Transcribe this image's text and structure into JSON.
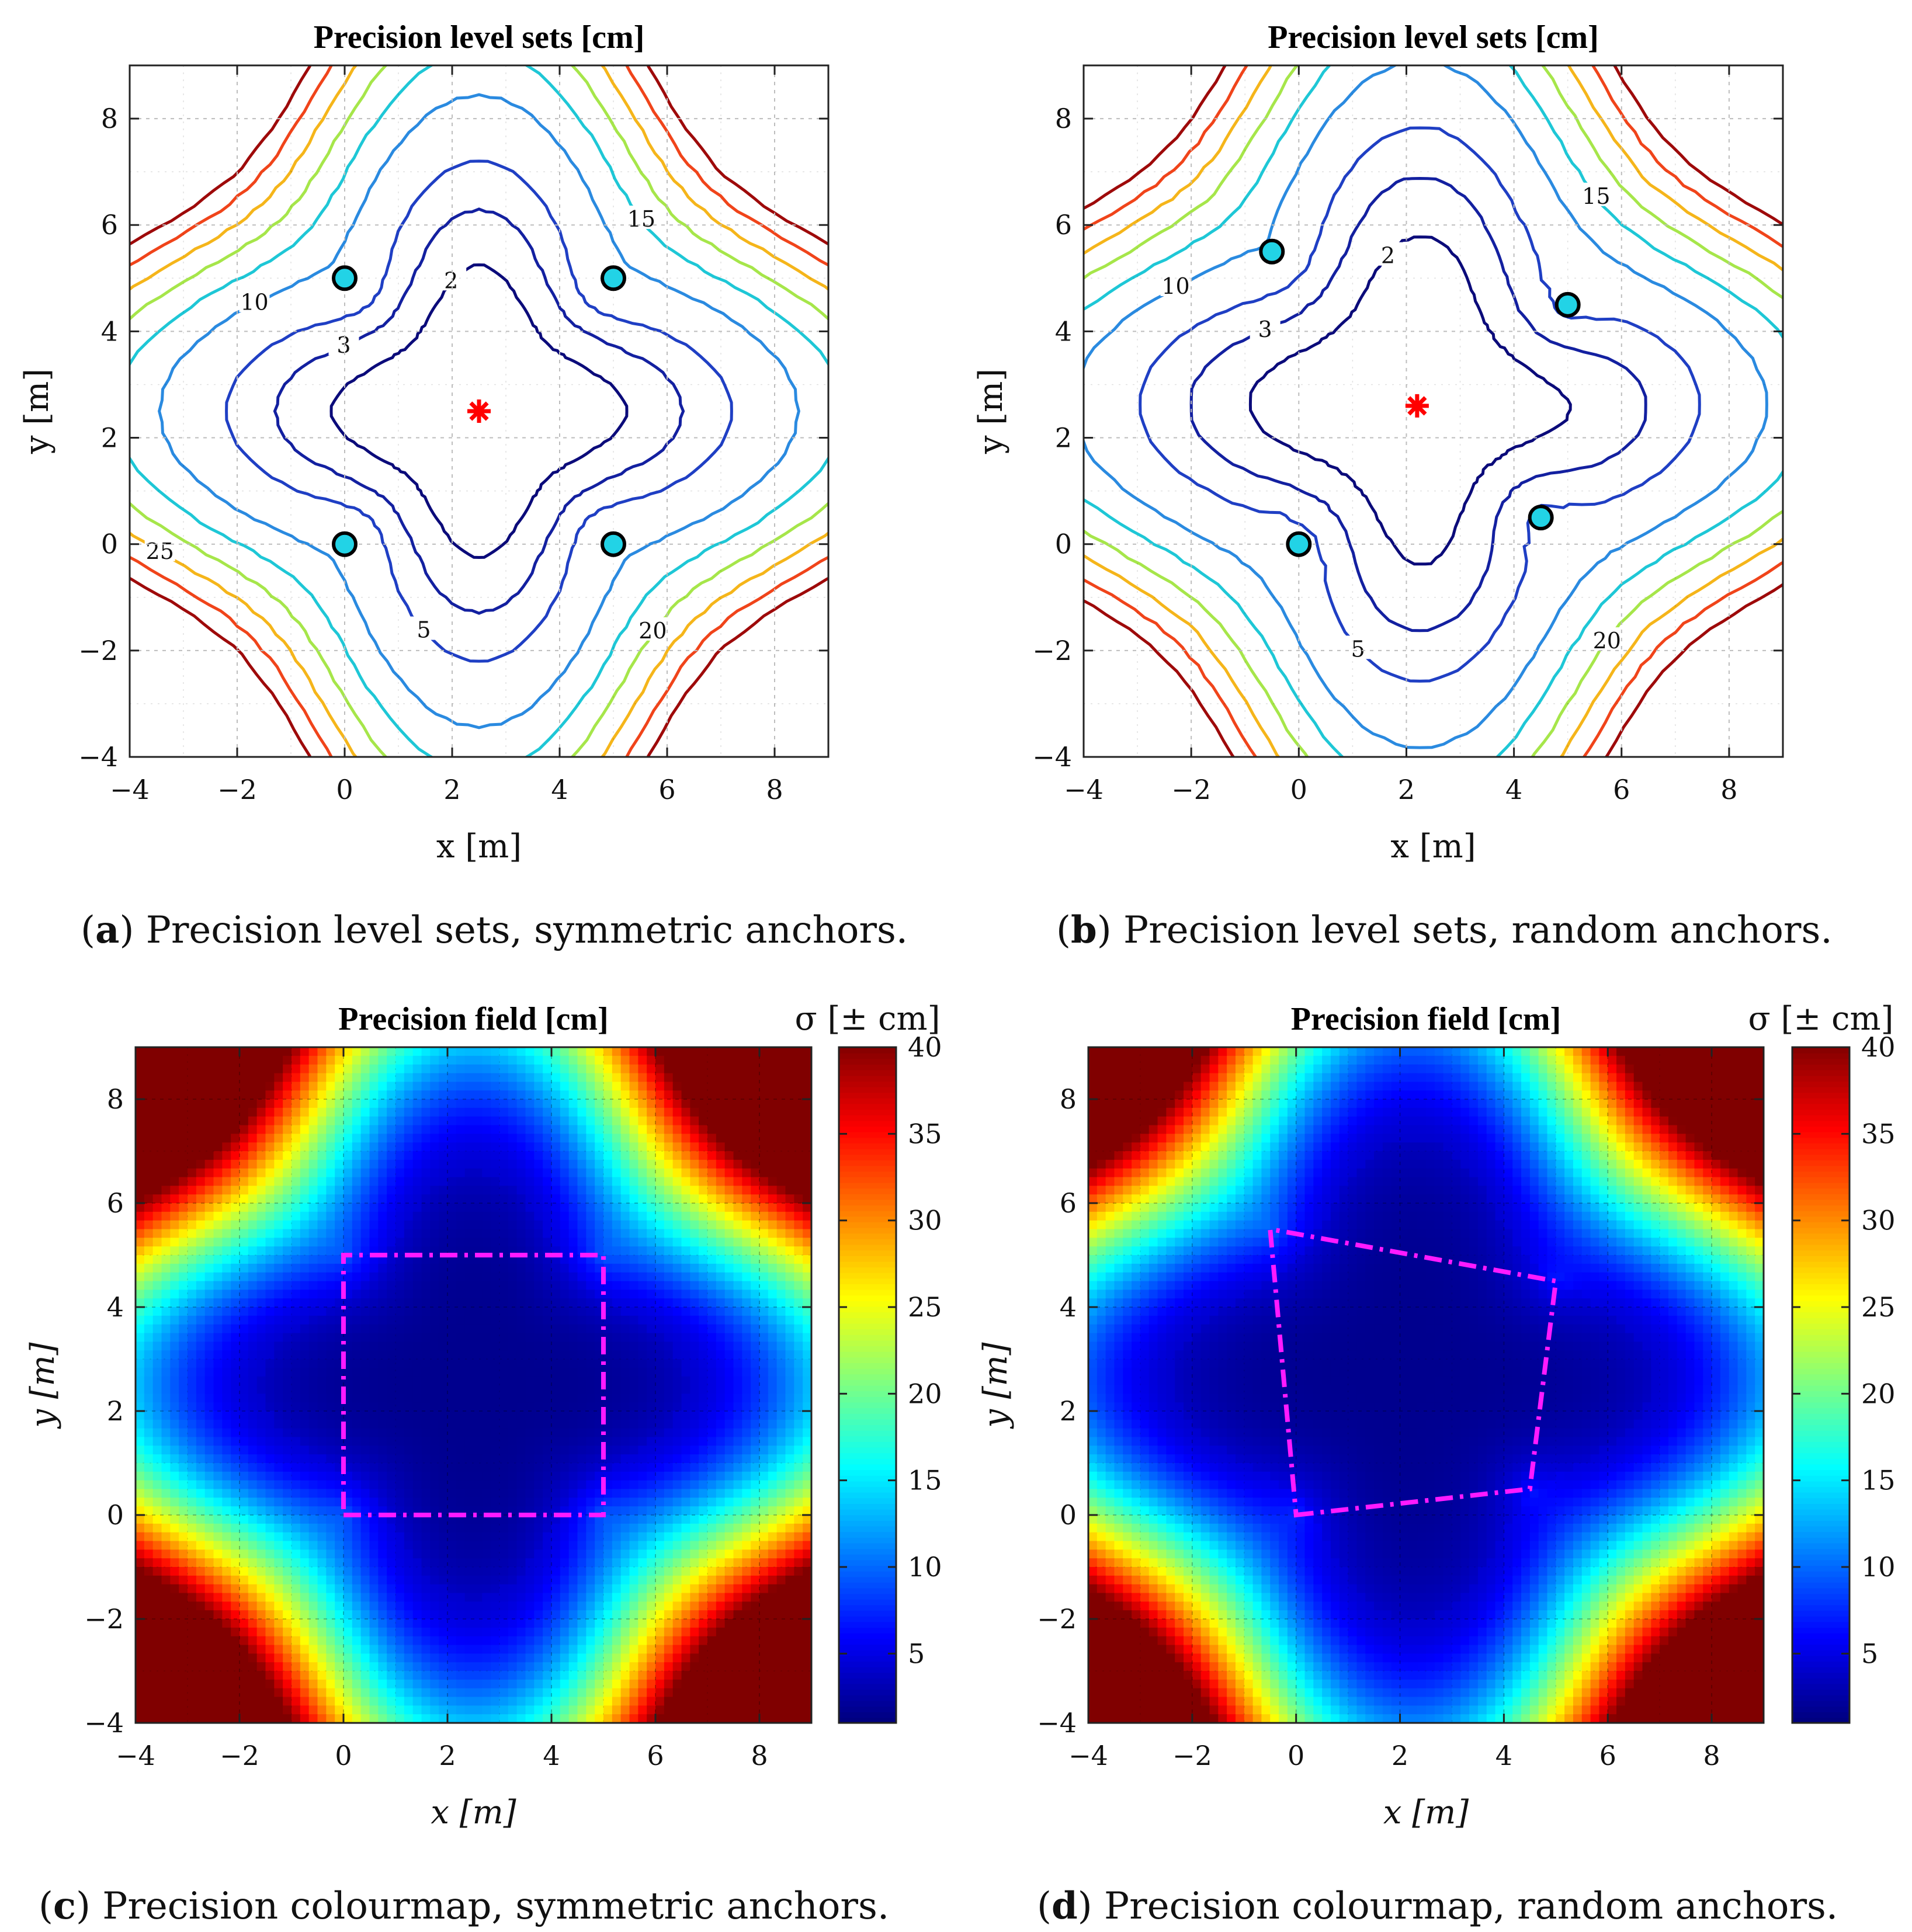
{
  "chart_data": [
    {
      "panel": "a",
      "type": "contour",
      "title": "Precision level sets [cm]",
      "xlabel": "x [m]",
      "ylabel": "y [m]",
      "xlim": [
        -4,
        9
      ],
      "ylim": [
        -4,
        9
      ],
      "xticks": [
        -4,
        -2,
        0,
        2,
        4,
        6,
        8
      ],
      "yticks": [
        -4,
        -2,
        0,
        2,
        4,
        6,
        8
      ],
      "xtick_labels": [
        "−4",
        "−2",
        "0",
        "2",
        "4",
        "6",
        "8"
      ],
      "ytick_labels": [
        "−4",
        "−2",
        "0",
        "2",
        "4",
        "6",
        "8"
      ],
      "grid": true,
      "levels": [
        2,
        3,
        5,
        10,
        15,
        20,
        25,
        30,
        35
      ],
      "anchors": [
        [
          0,
          0
        ],
        [
          5,
          0
        ],
        [
          5,
          5
        ],
        [
          0,
          5
        ]
      ],
      "anchors_marker_color": "#22d3e6",
      "target": [
        2.5,
        2.5
      ],
      "target_color": "#ff0000",
      "caption_letter": "a",
      "caption_text": " Precision level sets, symmetric anchors."
    },
    {
      "panel": "b",
      "type": "contour",
      "title": "Precision level sets [cm]",
      "xlabel": "x [m]",
      "ylabel": "y [m]",
      "xlim": [
        -4,
        9
      ],
      "ylim": [
        -4,
        9
      ],
      "xticks": [
        -4,
        -2,
        0,
        2,
        4,
        6,
        8
      ],
      "yticks": [
        -4,
        -2,
        0,
        2,
        4,
        6,
        8
      ],
      "xtick_labels": [
        "−4",
        "−2",
        "0",
        "2",
        "4",
        "6",
        "8"
      ],
      "ytick_labels": [
        "−4",
        "−2",
        "0",
        "2",
        "4",
        "6",
        "8"
      ],
      "grid": true,
      "levels": [
        2,
        3,
        5,
        10,
        15,
        20,
        25,
        30,
        35
      ],
      "anchors": [
        [
          0,
          0
        ],
        [
          4.5,
          0.5
        ],
        [
          5,
          4.5
        ],
        [
          -0.5,
          5.5
        ]
      ],
      "anchors_marker_color": "#22d3e6",
      "target": [
        2.2,
        2.6
      ],
      "target_color": "#ff0000",
      "caption_letter": "b",
      "caption_text": " Precision level sets, random anchors."
    },
    {
      "panel": "c",
      "type": "heatmap",
      "title": "Precision field [cm]",
      "xlabel": "x [m]",
      "ylabel": "y [m]",
      "xlim": [
        -4,
        9
      ],
      "ylim": [
        -4,
        9
      ],
      "xticks": [
        -4,
        -2,
        0,
        2,
        4,
        6,
        8
      ],
      "yticks": [
        -4,
        -2,
        0,
        2,
        4,
        6,
        8
      ],
      "xtick_labels": [
        "−4",
        "−2",
        "0",
        "2",
        "4",
        "6",
        "8"
      ],
      "ytick_labels": [
        "−4",
        "−2",
        "0",
        "2",
        "4",
        "6",
        "8"
      ],
      "grid": true,
      "colorbar_label": "σ [± cm]",
      "colorbar_range": [
        1,
        40
      ],
      "colorbar_ticks": [
        5,
        10,
        15,
        20,
        25,
        30,
        35,
        40
      ],
      "colorbar_tick_labels": [
        "5",
        "10",
        "15",
        "20",
        "25",
        "30",
        "35",
        "40"
      ],
      "anchors": [
        [
          0,
          0
        ],
        [
          5,
          0
        ],
        [
          5,
          5
        ],
        [
          0,
          5
        ]
      ],
      "polygon_color": "#ff1aff",
      "caption_letter": "c",
      "caption_text": " Precision colourmap, symmetric anchors."
    },
    {
      "panel": "d",
      "type": "heatmap",
      "title": "Precision field [cm]",
      "xlabel": "x [m]",
      "ylabel": "y [m]",
      "xlim": [
        -4,
        9
      ],
      "ylim": [
        -4,
        9
      ],
      "xticks": [
        -4,
        -2,
        0,
        2,
        4,
        6,
        8
      ],
      "yticks": [
        -4,
        -2,
        0,
        2,
        4,
        6,
        8
      ],
      "xtick_labels": [
        "−4",
        "−2",
        "0",
        "2",
        "4",
        "6",
        "8"
      ],
      "ytick_labels": [
        "−4",
        "−2",
        "0",
        "2",
        "4",
        "6",
        "8"
      ],
      "grid": true,
      "colorbar_label": "σ [± cm]",
      "colorbar_range": [
        1,
        40
      ],
      "colorbar_ticks": [
        5,
        10,
        15,
        20,
        25,
        30,
        35,
        40
      ],
      "colorbar_tick_labels": [
        "5",
        "10",
        "15",
        "20",
        "25",
        "30",
        "35",
        "40"
      ],
      "anchors": [
        [
          0,
          0
        ],
        [
          4.5,
          0.5
        ],
        [
          5,
          4.5
        ],
        [
          -0.5,
          5.5
        ]
      ],
      "polygon_color": "#ff1aff",
      "caption_letter": "d",
      "caption_text": " Precision colourmap, random anchors."
    }
  ]
}
